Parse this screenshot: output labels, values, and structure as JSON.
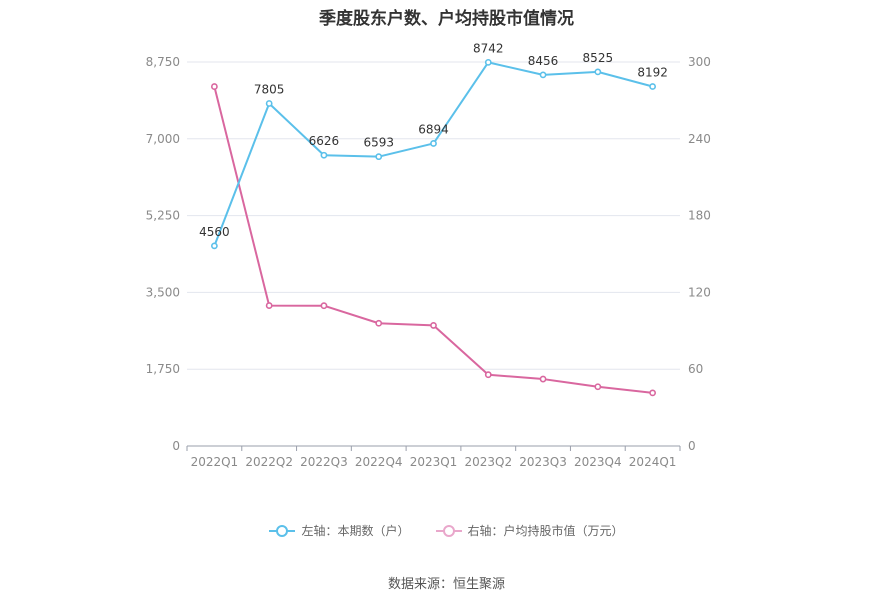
{
  "chart_data": {
    "type": "line",
    "title": "季度股东户数、户均持股市值情况",
    "categories": [
      "2022Q1",
      "2022Q2",
      "2022Q3",
      "2022Q4",
      "2023Q1",
      "2023Q2",
      "2023Q3",
      "2023Q4",
      "2024Q1"
    ],
    "left_axis": {
      "ticks": [
        "0",
        "1,750",
        "3,500",
        "5,250",
        "7,000",
        "8,750"
      ],
      "ylim": [
        0,
        8750
      ]
    },
    "right_axis": {
      "ticks": [
        "0",
        "60",
        "120",
        "180",
        "240",
        "300"
      ],
      "ylim": [
        0,
        300
      ]
    },
    "grid": true,
    "legend_placement": "bottom",
    "series": [
      {
        "name": "左轴：本期数（户）",
        "axis": "left",
        "color": "#5bc0ea",
        "values": [
          4560,
          7805,
          6626,
          6593,
          6894,
          8742,
          8456,
          8525,
          8192
        ],
        "labels": [
          "4560",
          "7805",
          "6626",
          "6593",
          "6894",
          "8742",
          "8456",
          "8525",
          "8192"
        ]
      },
      {
        "name": "右轴：户均持股市值（万元）",
        "axis": "right",
        "color": "#d9679f",
        "values": [
          280.8,
          109.7,
          109.6,
          95.9,
          94.2,
          55.7,
          52.3,
          46.3,
          41.5
        ]
      }
    ]
  },
  "source": "数据来源：恒生聚源"
}
